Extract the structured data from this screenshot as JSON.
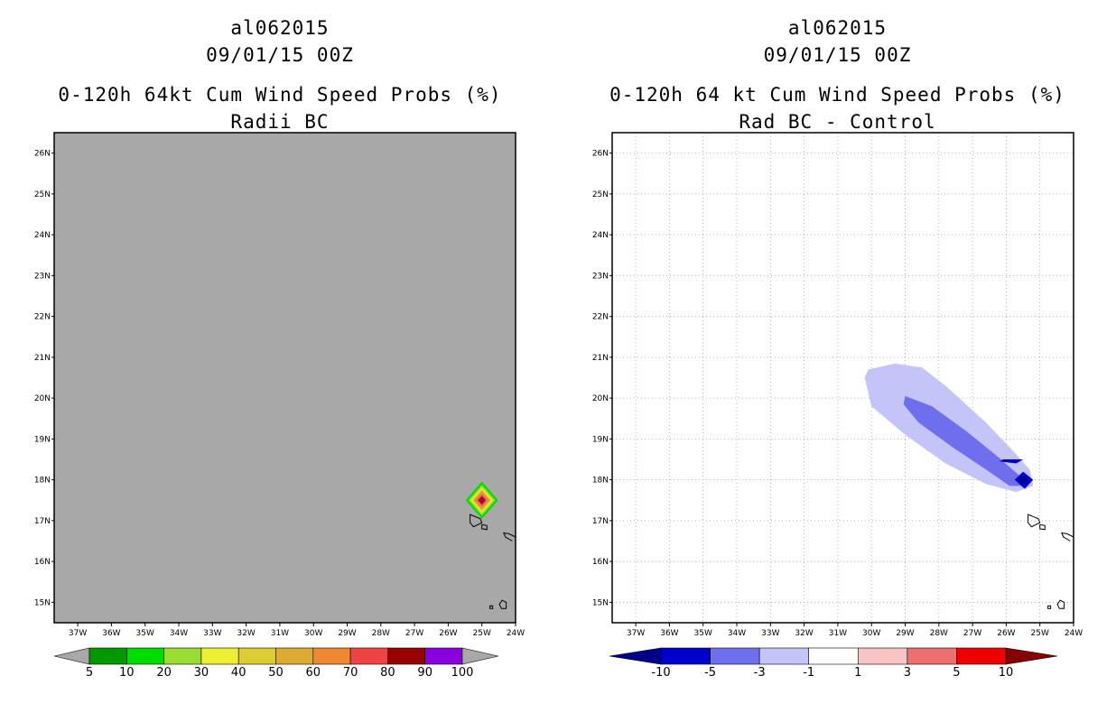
{
  "chart_data": [
    {
      "type": "heatmap",
      "storm_id": "al062015",
      "datetime": "09/01/15 00Z",
      "title": "0-120h 64kt Cum Wind Speed Probs (%)",
      "subtitle": "Radii BC",
      "x_ticks": [
        "37W",
        "36W",
        "35W",
        "34W",
        "33W",
        "32W",
        "31W",
        "30W",
        "29W",
        "28W",
        "27W",
        "26W",
        "25W",
        "24W"
      ],
      "y_ticks": [
        "26N",
        "25N",
        "24N",
        "23N",
        "22N",
        "21N",
        "20N",
        "19N",
        "18N",
        "17N",
        "16N",
        "15N"
      ],
      "xlim": [
        -37.7,
        -24.0
      ],
      "ylim": [
        14.5,
        26.5
      ],
      "background_color": "#a8a8a8",
      "grid": false,
      "colorbar": {
        "labels": [
          "5",
          "10",
          "20",
          "30",
          "40",
          "50",
          "60",
          "70",
          "80",
          "90",
          "100"
        ],
        "colors": [
          "#009900",
          "#00dd00",
          "#99dd33",
          "#eeee33",
          "#ddcc33",
          "#ddaa33",
          "#ee8833",
          "#ee4444",
          "#990000",
          "#8800dd"
        ],
        "under_color": "#a8a8a8",
        "over_color": "#a8a8a8"
      },
      "feature": {
        "center_lon": -25.0,
        "center_lat": 17.5,
        "max_prob": 100
      }
    },
    {
      "type": "heatmap",
      "storm_id": "al062015",
      "datetime": "09/01/15 00Z",
      "title": "0-120h 64 kt Cum Wind Speed Probs (%)",
      "subtitle": "Rad BC - Control",
      "x_ticks": [
        "37W",
        "36W",
        "35W",
        "34W",
        "33W",
        "32W",
        "31W",
        "30W",
        "29W",
        "28W",
        "27W",
        "26W",
        "25W",
        "24W"
      ],
      "y_ticks": [
        "26N",
        "25N",
        "24N",
        "23N",
        "22N",
        "21N",
        "20N",
        "19N",
        "18N",
        "17N",
        "16N",
        "15N"
      ],
      "xlim": [
        -37.7,
        -24.0
      ],
      "ylim": [
        14.5,
        26.5
      ],
      "background_color": "#ffffff",
      "grid": true,
      "colorbar": {
        "labels": [
          "-10",
          "-5",
          "-3",
          "-1",
          "1",
          "3",
          "5",
          "10"
        ],
        "colors": [
          "#0000cc",
          "#6f6fee",
          "#c4c4f8",
          "#ffffff",
          "#f8c4c4",
          "#ee6f6f",
          "#ee0000"
        ],
        "under_color": "#000088",
        "over_color": "#880000"
      },
      "feature": {
        "description": "negative difference band",
        "min_diff": -10
      }
    }
  ]
}
